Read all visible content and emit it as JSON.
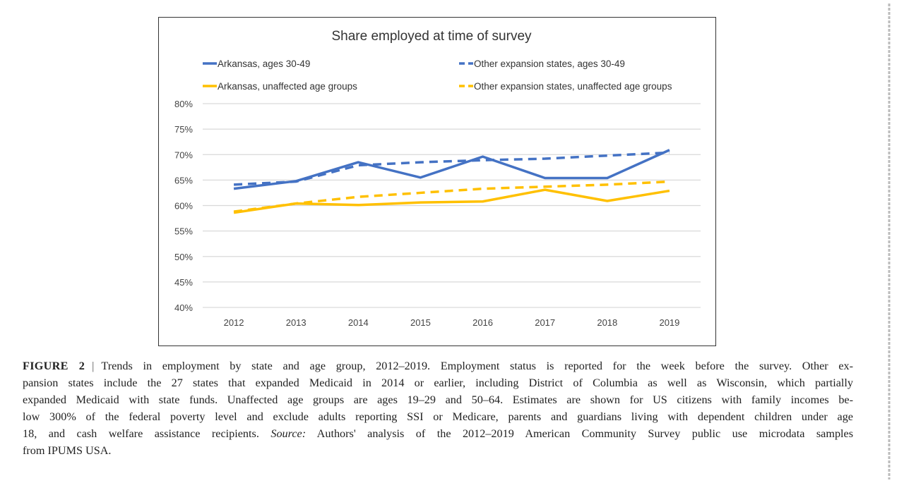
{
  "chart_data": {
    "type": "line",
    "title": "Share employed at time of survey",
    "categories": [
      "2012",
      "2013",
      "2014",
      "2015",
      "2016",
      "2017",
      "2018",
      "2019"
    ],
    "ylim": [
      0.4,
      0.8
    ],
    "yticks": [
      "40%",
      "45%",
      "50%",
      "55%",
      "60%",
      "65%",
      "70%",
      "75%",
      "80%"
    ],
    "ytick_values": [
      0.4,
      0.45,
      0.5,
      0.55,
      0.6,
      0.65,
      0.7,
      0.75,
      0.8
    ],
    "grid": true,
    "legend_position": "top",
    "series": [
      {
        "name": "Arkansas, ages 30-49",
        "color": "#4472C4",
        "dash": false,
        "values": [
          0.633,
          0.648,
          0.685,
          0.655,
          0.696,
          0.654,
          0.654,
          0.709
        ]
      },
      {
        "name": "Other expansion states, ages 30-49",
        "color": "#4472C4",
        "dash": true,
        "values": [
          0.641,
          0.647,
          0.679,
          0.685,
          0.689,
          0.692,
          0.698,
          0.704
        ]
      },
      {
        "name": "Arkansas, unaffected age groups",
        "color": "#FFC000",
        "dash": false,
        "values": [
          0.586,
          0.604,
          0.601,
          0.606,
          0.608,
          0.631,
          0.609,
          0.629
        ]
      },
      {
        "name": "Other expansion states, unaffected age groups",
        "color": "#FFC000",
        "dash": true,
        "values": [
          0.588,
          0.604,
          0.617,
          0.625,
          0.633,
          0.637,
          0.641,
          0.647
        ]
      }
    ]
  },
  "caption": {
    "figure_label": "FIGURE 2",
    "separator": "|",
    "line1": "Trends in employment by state and age group, 2012–2019. Employment status is reported for the week before the survey. Other ex-",
    "line2": "pansion states include the 27 states that expanded Medicaid in 2014 or earlier, including District of Columbia as well as Wisconsin, which partially",
    "line3": "expanded Medicaid with state funds. Unaffected age groups are ages 19–29 and 50–64. Estimates are shown for US citizens with family incomes be-",
    "line4": "low 300% of the federal poverty level and exclude adults reporting SSI or Medicare, parents and guardians living with dependent children under age",
    "line5a": "18, and cash welfare assistance recipients.",
    "line5_source": "Source:",
    "line5b": "Authors' analysis of the 2012–2019 American Community Survey public use microdata samples",
    "line6": "from IPUMS USA."
  }
}
